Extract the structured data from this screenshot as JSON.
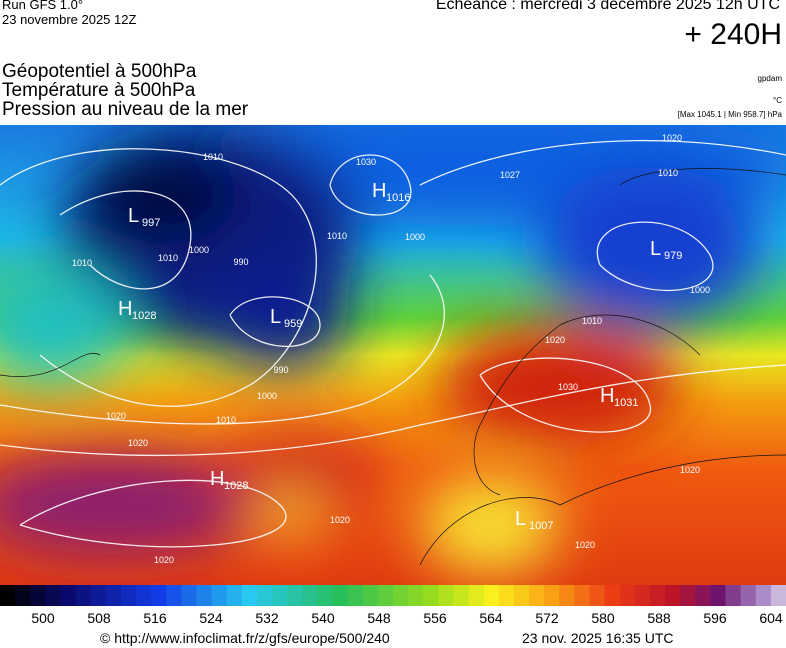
{
  "header": {
    "run": "Run GFS 1.0°",
    "run_date": "23 novembre 2025 12Z",
    "forecast": "Echéance : mercredi 3 décembre 2025 12h UTC",
    "lead": "+ 240H",
    "titles": [
      "Géopotentiel à 500hPa",
      "Température à 500hPa",
      "Pression au niveau de la mer"
    ],
    "units": [
      "gpdam",
      "°C",
      "[Max 1045.1 | Min 958.7] hPa"
    ]
  },
  "map": {
    "centers": [
      {
        "letter": "L",
        "value": "997"
      },
      {
        "letter": "L",
        "value": "959"
      },
      {
        "letter": "H",
        "value": "1028"
      },
      {
        "letter": "H",
        "value": "1028"
      },
      {
        "letter": "L",
        "value": "979"
      },
      {
        "letter": "H",
        "value": "1031"
      },
      {
        "letter": "L",
        "value": "1007"
      },
      {
        "letter": "H",
        "value": "1016"
      }
    ],
    "isobar_labels": [
      "1010",
      "1010",
      "1010",
      "1000",
      "990",
      "990",
      "1000",
      "1010",
      "1020",
      "1020",
      "1020",
      "1020",
      "1030",
      "1000",
      "1010",
      "1020",
      "1010",
      "1000",
      "1010",
      "1020",
      "1020",
      "1020",
      "1030",
      "1027"
    ]
  },
  "scale": {
    "labels": [
      "500",
      "508",
      "516",
      "524",
      "532",
      "540",
      "548",
      "556",
      "564",
      "572",
      "580",
      "588",
      "596",
      "604"
    ]
  },
  "footer": {
    "url": "© http://www.infoclimat.fr/z/gfs/europe/500/240",
    "timestamp": "23 nov. 2025 16:35 UTC"
  }
}
